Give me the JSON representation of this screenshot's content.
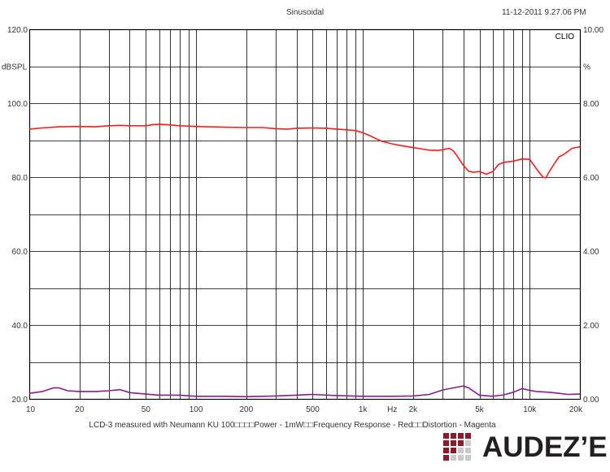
{
  "header": {
    "center": "Sinusoidal",
    "right": "11-12-2011  9.27.06 PM"
  },
  "corner_label": "CLIO",
  "caption": "LCD-3 measured with Neumann KU 100□□□□Power - 1mW□□Frequency Response - Red□□Distortion - Magenta",
  "logo": {
    "text": "AUDEZ’E",
    "color": "#8b1a2b"
  },
  "colors": {
    "grid": "#000000",
    "frequency_response": "#ff1a1a",
    "distortion": "#8b1a8b"
  },
  "chart_data": {
    "type": "line",
    "x_scale": "log",
    "xlim": [
      10,
      20000
    ],
    "x_ticks": [
      {
        "v": 10,
        "label": "10"
      },
      {
        "v": 20,
        "label": "20"
      },
      {
        "v": 50,
        "label": "50"
      },
      {
        "v": 100,
        "label": "100"
      },
      {
        "v": 200,
        "label": "200"
      },
      {
        "v": 500,
        "label": "500"
      },
      {
        "v": 1000,
        "label": "1k"
      },
      {
        "v": 2000,
        "label": "2k"
      },
      {
        "v": 5000,
        "label": "5k"
      },
      {
        "v": 10000,
        "label": "10k"
      },
      {
        "v": 20000,
        "label": "20k"
      }
    ],
    "xlabel": "Hz",
    "xlabel_at": 1500,
    "ylim": [
      20,
      120
    ],
    "ylabel": "dBSPL",
    "y_ticks": [
      {
        "v": 120,
        "label": "120.0"
      },
      {
        "v": 100,
        "label": "100.0"
      },
      {
        "v": 80,
        "label": "80.0"
      },
      {
        "v": 60,
        "label": "60.0"
      },
      {
        "v": 40,
        "label": "40.0"
      },
      {
        "v": 20,
        "label": "20.0"
      }
    ],
    "y2lim": [
      0,
      10
    ],
    "y2label": "%",
    "y2_ticks": [
      {
        "v": 10,
        "label": "10.00"
      },
      {
        "v": 8,
        "label": "8.00"
      },
      {
        "v": 6,
        "label": "6.00"
      },
      {
        "v": 4,
        "label": "4.00"
      },
      {
        "v": 2,
        "label": "2.00"
      },
      {
        "v": 0,
        "label": "0.00"
      }
    ],
    "grid": true,
    "series": [
      {
        "name": "Frequency Response",
        "axis": "left",
        "color": "#ff1a1a",
        "points": [
          [
            10,
            93.0
          ],
          [
            12,
            93.3
          ],
          [
            15,
            93.6
          ],
          [
            20,
            93.7
          ],
          [
            25,
            93.6
          ],
          [
            30,
            93.9
          ],
          [
            35,
            94.0
          ],
          [
            40,
            93.9
          ],
          [
            50,
            93.9
          ],
          [
            55,
            94.2
          ],
          [
            60,
            94.3
          ],
          [
            70,
            94.1
          ],
          [
            80,
            93.9
          ],
          [
            100,
            93.7
          ],
          [
            120,
            93.6
          ],
          [
            150,
            93.5
          ],
          [
            200,
            93.4
          ],
          [
            250,
            93.4
          ],
          [
            300,
            93.1
          ],
          [
            350,
            93.0
          ],
          [
            400,
            93.2
          ],
          [
            500,
            93.3
          ],
          [
            600,
            93.2
          ],
          [
            700,
            93.0
          ],
          [
            800,
            92.8
          ],
          [
            900,
            92.6
          ],
          [
            1000,
            92.0
          ],
          [
            1100,
            91.2
          ],
          [
            1200,
            90.4
          ],
          [
            1300,
            89.7
          ],
          [
            1500,
            89.0
          ],
          [
            1700,
            88.5
          ],
          [
            2000,
            88.0
          ],
          [
            2200,
            87.7
          ],
          [
            2500,
            87.3
          ],
          [
            2800,
            87.2
          ],
          [
            3000,
            87.4
          ],
          [
            3300,
            87.8
          ],
          [
            3500,
            87.0
          ],
          [
            3700,
            85.5
          ],
          [
            4000,
            83.2
          ],
          [
            4300,
            81.6
          ],
          [
            4600,
            81.3
          ],
          [
            5000,
            81.5
          ],
          [
            5500,
            80.8
          ],
          [
            6000,
            81.5
          ],
          [
            6500,
            83.4
          ],
          [
            7000,
            84.0
          ],
          [
            8000,
            84.3
          ],
          [
            9000,
            84.9
          ],
          [
            10000,
            84.8
          ],
          [
            11000,
            82.2
          ],
          [
            12000,
            80.0
          ],
          [
            12500,
            79.8
          ],
          [
            13000,
            81.2
          ],
          [
            14000,
            83.5
          ],
          [
            15000,
            85.5
          ],
          [
            16000,
            86.1
          ],
          [
            17000,
            87.0
          ],
          [
            18000,
            87.8
          ],
          [
            19000,
            88.0
          ],
          [
            20000,
            88.2
          ]
        ]
      },
      {
        "name": "Distortion",
        "axis": "right",
        "color": "#8b1a8b",
        "points": [
          [
            10,
            0.15
          ],
          [
            12,
            0.2
          ],
          [
            14,
            0.3
          ],
          [
            15,
            0.3
          ],
          [
            17,
            0.22
          ],
          [
            20,
            0.2
          ],
          [
            25,
            0.2
          ],
          [
            30,
            0.22
          ],
          [
            35,
            0.25
          ],
          [
            40,
            0.17
          ],
          [
            50,
            0.13
          ],
          [
            60,
            0.1
          ],
          [
            80,
            0.1
          ],
          [
            100,
            0.07
          ],
          [
            150,
            0.07
          ],
          [
            200,
            0.06
          ],
          [
            300,
            0.08
          ],
          [
            400,
            0.1
          ],
          [
            500,
            0.12
          ],
          [
            700,
            0.09
          ],
          [
            1000,
            0.07
          ],
          [
            1500,
            0.07
          ],
          [
            2000,
            0.08
          ],
          [
            2500,
            0.12
          ],
          [
            3000,
            0.24
          ],
          [
            3500,
            0.3
          ],
          [
            4000,
            0.35
          ],
          [
            4300,
            0.3
          ],
          [
            5000,
            0.1
          ],
          [
            6000,
            0.07
          ],
          [
            7000,
            0.11
          ],
          [
            8000,
            0.18
          ],
          [
            9000,
            0.28
          ],
          [
            10000,
            0.23
          ],
          [
            11000,
            0.2
          ],
          [
            13000,
            0.18
          ],
          [
            15000,
            0.15
          ],
          [
            17000,
            0.12
          ],
          [
            20000,
            0.13
          ]
        ]
      }
    ]
  }
}
